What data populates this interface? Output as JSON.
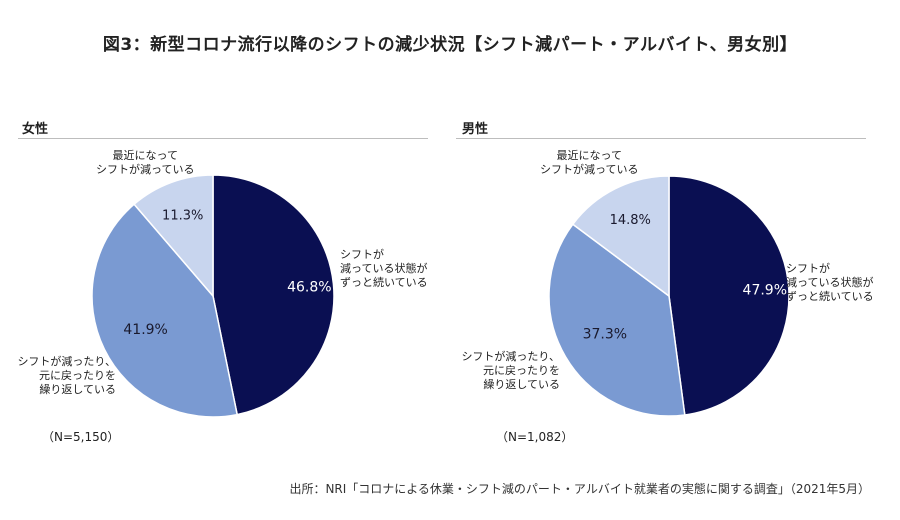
{
  "title": "図3：新型コロナ流行以降のシフトの減少状況【シフト減パート・アルバイト、男女別】",
  "source": "出所：NRI「コロナによる休業・シフト減のパート・アルバイト就業者の実態に関する調査」（2021年5月）",
  "chart_data": [
    {
      "type": "pie",
      "title": "女性",
      "n_label": "（N=5,150）",
      "slices": [
        {
          "label": "シフトが減っている状態がずっと続いている",
          "value": 46.8,
          "value_label": "46.8%",
          "color": "#0a0f52",
          "text_color": "#ffffff"
        },
        {
          "label": "シフトが減ったり、元に戻ったりを繰り返している",
          "value": 41.9,
          "value_label": "41.9%",
          "color": "#7a9ad2",
          "text_color": "#1a1a2e"
        },
        {
          "label": "最近になってシフトが減っている",
          "value": 11.3,
          "value_label": "11.3%",
          "color": "#c8d5ee",
          "text_color": "#1a1a2e"
        }
      ]
    },
    {
      "type": "pie",
      "title": "男性",
      "n_label": "（N=1,082）",
      "slices": [
        {
          "label": "シフトが減っている状態がずっと続いている",
          "value": 47.9,
          "value_label": "47.9%",
          "color": "#0a0f52",
          "text_color": "#ffffff"
        },
        {
          "label": "シフトが減ったり、元に戻ったりを繰り返している",
          "value": 37.3,
          "value_label": "37.3%",
          "color": "#7a9ad2",
          "text_color": "#1a1a2e"
        },
        {
          "label": "最近になってシフトが減っている",
          "value": 14.8,
          "value_label": "14.8%",
          "color": "#c8d5ee",
          "text_color": "#1a1a2e"
        }
      ]
    }
  ],
  "labels": {
    "recent": [
      "最近になって",
      "シフトが減っている"
    ],
    "continuing": [
      "シフトが",
      "減っている状態が",
      "ずっと続いている"
    ],
    "repeating": [
      "シフトが減ったり、",
      "元に戻ったりを",
      "繰り返している"
    ]
  }
}
